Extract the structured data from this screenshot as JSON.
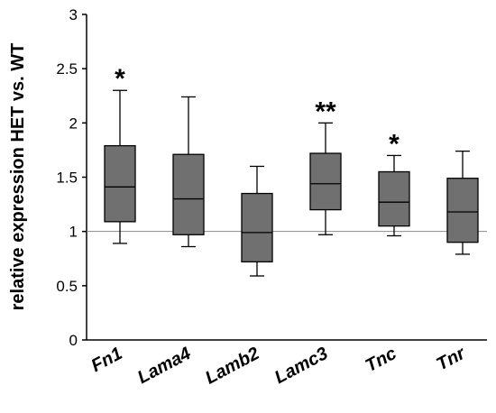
{
  "chart_data": {
    "type": "boxplot",
    "ylabel": "relative expression HET vs. WT",
    "ylim": [
      0,
      3
    ],
    "yticks": [
      0,
      0.5,
      1,
      1.5,
      2,
      2.5,
      3
    ],
    "ytick_labels": [
      "0",
      "0.5",
      "1",
      "1.5",
      "2",
      "2.5",
      "3"
    ],
    "reference_line": 1,
    "box_color": "#707070",
    "categories": [
      "Fn1",
      "Lama4",
      "Lamb2",
      "Lamc3",
      "Tnc",
      "Tnr"
    ],
    "boxes": [
      {
        "min": 0.89,
        "q1": 1.09,
        "median": 1.41,
        "q3": 1.79,
        "max": 2.3,
        "significance": "*"
      },
      {
        "min": 0.86,
        "q1": 0.97,
        "median": 1.3,
        "q3": 1.71,
        "max": 2.24,
        "significance": ""
      },
      {
        "min": 0.59,
        "q1": 0.72,
        "median": 0.99,
        "q3": 1.35,
        "max": 1.6,
        "significance": ""
      },
      {
        "min": 0.97,
        "q1": 1.2,
        "median": 1.44,
        "q3": 1.72,
        "max": 2.0,
        "significance": "**"
      },
      {
        "min": 0.96,
        "q1": 1.05,
        "median": 1.27,
        "q3": 1.55,
        "max": 1.7,
        "significance": "*"
      },
      {
        "min": 0.79,
        "q1": 0.9,
        "median": 1.18,
        "q3": 1.49,
        "max": 1.74,
        "significance": ""
      }
    ]
  }
}
